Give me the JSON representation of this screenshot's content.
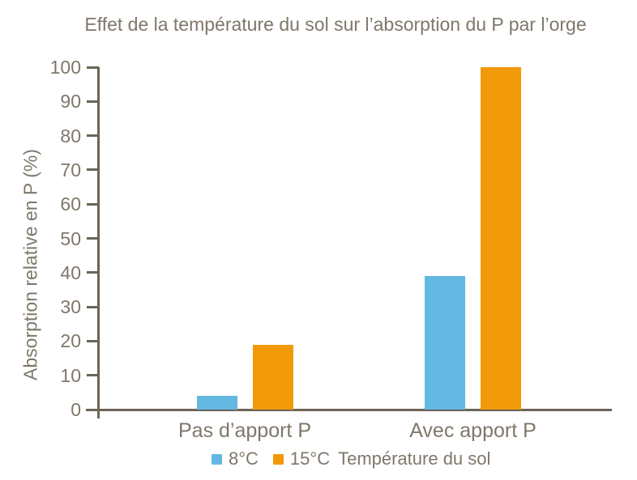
{
  "chart_data": {
    "type": "bar",
    "title": "Effet de la température du sol sur l’absorption du P par l’orge",
    "ylabel": "Absorption relative en P (%)",
    "xlabel": "",
    "categories": [
      "Pas d’apport P",
      "Avec apport P"
    ],
    "series": [
      {
        "name": "8°C",
        "color": "#63B8E2",
        "values": [
          4,
          39
        ]
      },
      {
        "name": "15°C",
        "color": "#F2990A",
        "values": [
          19,
          100
        ]
      }
    ],
    "legend_title": "Température du sol",
    "ylim": [
      0,
      100
    ],
    "ytick_step": 10,
    "yticks": [
      0,
      10,
      20,
      30,
      40,
      50,
      60,
      70,
      80,
      90,
      100
    ],
    "grid": false,
    "legend_position": "bottom",
    "colors": {
      "text": "#7F776A",
      "axis": "#6C6457",
      "background": "#FFFFFF"
    }
  }
}
